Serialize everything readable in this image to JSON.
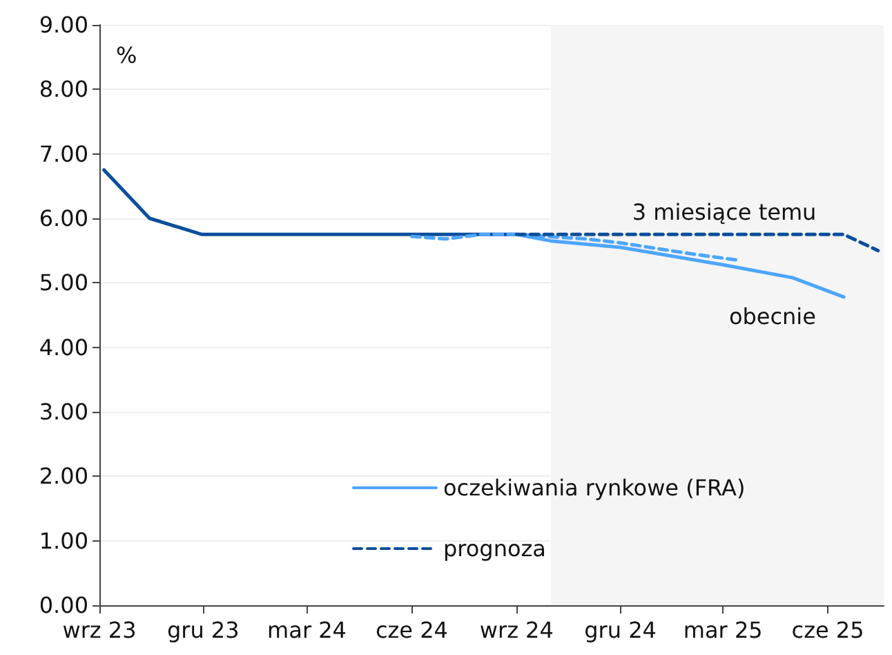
{
  "chart_data": {
    "type": "line",
    "ylabel": "%",
    "annotations": [
      {
        "text": "3 miesiące temu",
        "x": "2025-01-01",
        "y": 5.75
      },
      {
        "text": "obecnie",
        "x": "2025-05-01",
        "y": 5.08
      }
    ],
    "xlim": [
      "2023-09-01",
      "2025-07-20"
    ],
    "xticks": [
      {
        "value": "2023-09-01",
        "label": "wrz 23"
      },
      {
        "value": "2023-12-01",
        "label": "gru 23"
      },
      {
        "value": "2024-03-01",
        "label": "mar 24"
      },
      {
        "value": "2024-06-01",
        "label": "cze 24"
      },
      {
        "value": "2024-09-01",
        "label": "wrz 24"
      },
      {
        "value": "2024-12-01",
        "label": "gru 24"
      },
      {
        "value": "2025-03-01",
        "label": "mar 25"
      },
      {
        "value": "2025-06-01",
        "label": "cze 25"
      }
    ],
    "ylim": [
      0,
      9
    ],
    "yticks": [
      {
        "value": 0,
        "label": "0.00"
      },
      {
        "value": 1,
        "label": "1.00"
      },
      {
        "value": 2,
        "label": "2.00"
      },
      {
        "value": 3,
        "label": "3.00"
      },
      {
        "value": 4,
        "label": "4.00"
      },
      {
        "value": 5,
        "label": "5.00"
      },
      {
        "value": 6,
        "label": "6.00"
      },
      {
        "value": 7,
        "label": "7.00"
      },
      {
        "value": 8,
        "label": "8.00"
      },
      {
        "value": 9,
        "label": "9.00"
      }
    ],
    "grid": "y",
    "legend": "bottom right",
    "marker": "none",
    "bands": [
      {
        "axis": "x",
        "from": "2024-10-01",
        "to": "2025-07-20",
        "color": "#f5f5f5"
      }
    ],
    "series": [
      {
        "color": "#0b4f9c",
        "line_style": "solid",
        "x": [
          "2023-09-05",
          "2023-10-15",
          "2023-11-30",
          "2024-03-01",
          "2024-06-01",
          "2024-09-01"
        ],
        "values": [
          6.75,
          6.0,
          5.75,
          5.75,
          5.75,
          5.75
        ]
      },
      {
        "name": "oczekiwania rynkowe (FRA)",
        "color": "#4da6ff",
        "line_style": "solid",
        "x": [
          "2024-09-01",
          "2024-10-01",
          "2024-12-01",
          "2025-03-01",
          "2025-05-01",
          "2025-06-15"
        ],
        "values": [
          5.75,
          5.65,
          5.55,
          5.28,
          5.08,
          4.78
        ]
      },
      {
        "color": "#4da6ff",
        "line_style": "dashed",
        "x": [
          "2024-06-01",
          "2024-07-01",
          "2024-08-01",
          "2024-09-01",
          "2024-11-01",
          "2024-12-01",
          "2025-02-01",
          "2025-03-15"
        ],
        "values": [
          5.72,
          5.68,
          5.75,
          5.75,
          5.68,
          5.62,
          5.45,
          5.35
        ]
      },
      {
        "name": "prognoza",
        "color": "#0b4f9c",
        "line_style": "dashed",
        "x": [
          "2024-09-01",
          "2025-06-15",
          "2025-07-15"
        ],
        "values": [
          5.75,
          5.75,
          5.5
        ]
      }
    ]
  }
}
